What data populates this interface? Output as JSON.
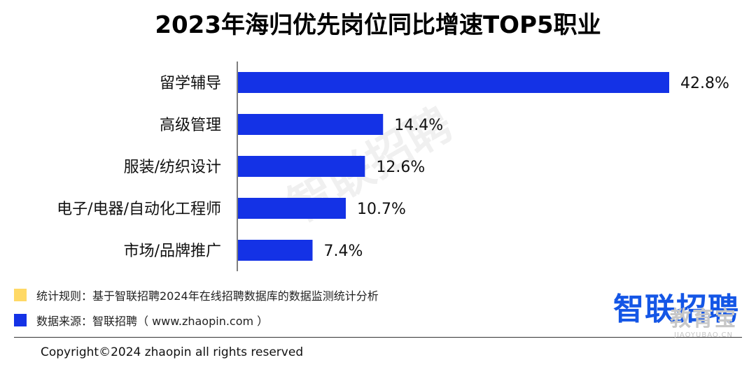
{
  "chart_data": {
    "type": "bar",
    "orientation": "horizontal",
    "title": "2023年海归优先岗位同比增速TOP5职业",
    "categories": [
      "留学辅导",
      "高级管理",
      "服装/纺织设计",
      "电子/电器/自动化工程师",
      "市场/品牌推广"
    ],
    "values": [
      42.8,
      14.4,
      12.6,
      10.7,
      7.4
    ],
    "value_labels": [
      "42.8%",
      "14.4%",
      "12.6%",
      "10.7%",
      "7.4%"
    ],
    "xlim": [
      0,
      45
    ],
    "grid": false,
    "bar_color": "#1432e6"
  },
  "watermark": "智联招聘",
  "notes": {
    "rule": "统计规则：基于智联招聘2024年在线招聘数据库的数据监测统计分析",
    "source": "数据来源：智联招聘（ www.zhaopin.com ）",
    "rule_color": "#ffd966",
    "source_color": "#1432e6"
  },
  "logo": "智联招聘",
  "copyright": "Copyright©2024 zhaopin all rights reserved",
  "site_watermark": {
    "cn": "教育宝",
    "en": "JIAOYUBAO.CN"
  }
}
